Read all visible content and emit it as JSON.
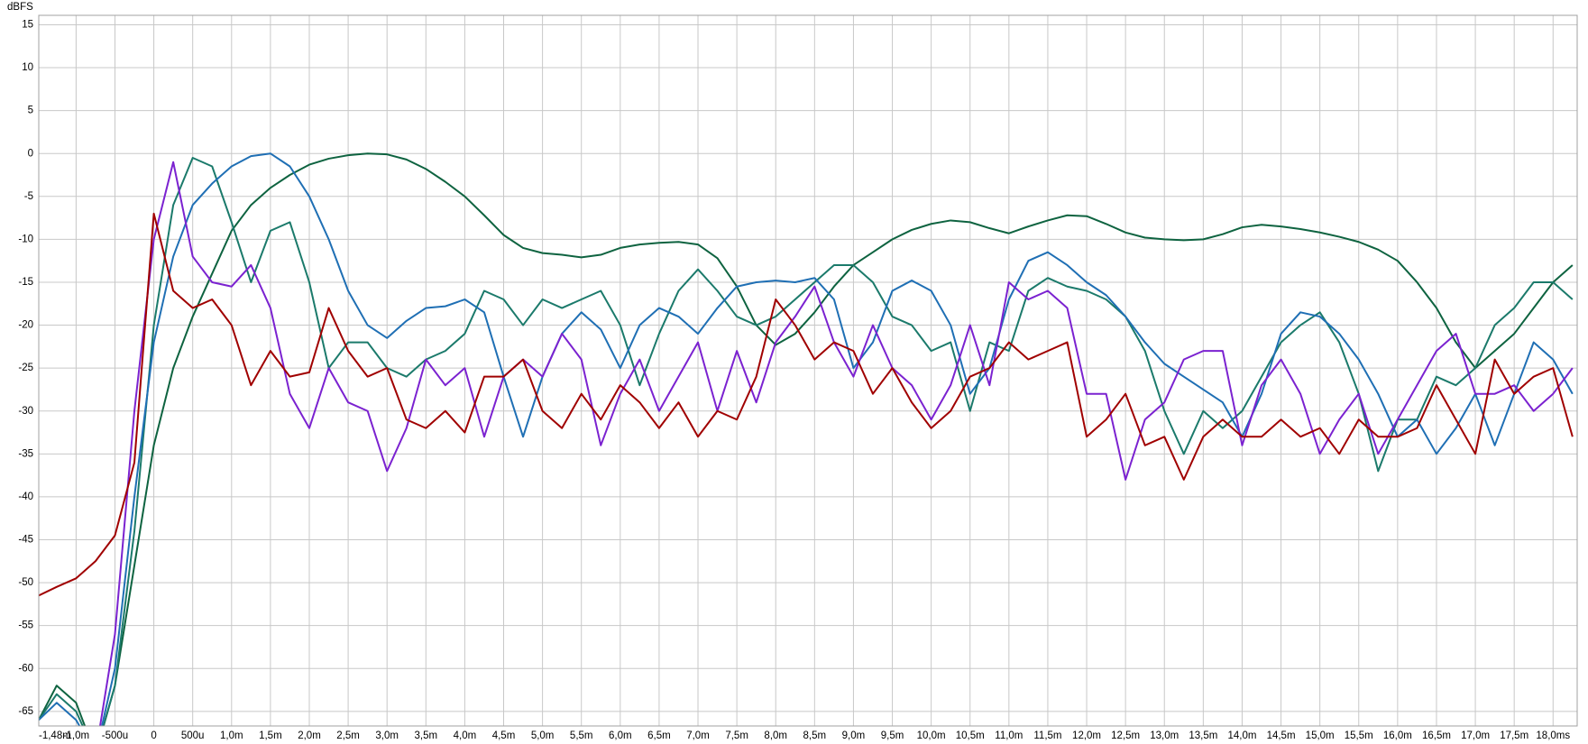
{
  "chart_data": {
    "type": "line",
    "ylabel": "dBFS",
    "xlim": [
      -1.48,
      18.31
    ],
    "ylim": [
      -66.7,
      16.1
    ],
    "grid": true,
    "xticks": [
      {
        "value": -1.48,
        "label": "-1,48m"
      },
      {
        "value": -1.0,
        "label": "-1,0m"
      },
      {
        "value": -0.5,
        "label": "-500u"
      },
      0,
      {
        "value": 0.5,
        "label": "500u"
      },
      {
        "value": 1.0,
        "label": "1,0m"
      },
      {
        "value": 1.5,
        "label": "1,5m"
      },
      {
        "value": 2.0,
        "label": "2,0m"
      },
      {
        "value": 2.5,
        "label": "2,5m"
      },
      {
        "value": 3.0,
        "label": "3,0m"
      },
      {
        "value": 3.5,
        "label": "3,5m"
      },
      {
        "value": 4.0,
        "label": "4,0m"
      },
      {
        "value": 4.5,
        "label": "4,5m"
      },
      {
        "value": 5.0,
        "label": "5,0m"
      },
      {
        "value": 5.5,
        "label": "5,5m"
      },
      {
        "value": 6.0,
        "label": "6,0m"
      },
      {
        "value": 6.5,
        "label": "6,5m"
      },
      {
        "value": 7.0,
        "label": "7,0m"
      },
      {
        "value": 7.5,
        "label": "7,5m"
      },
      {
        "value": 8.0,
        "label": "8,0m"
      },
      {
        "value": 8.5,
        "label": "8,5m"
      },
      {
        "value": 9.0,
        "label": "9,0m"
      },
      {
        "value": 9.5,
        "label": "9,5m"
      },
      {
        "value": 10.0,
        "label": "10,0m"
      },
      {
        "value": 10.5,
        "label": "10,5m"
      },
      {
        "value": 11.0,
        "label": "11,0m"
      },
      {
        "value": 11.5,
        "label": "11,5m"
      },
      {
        "value": 12.0,
        "label": "12,0m"
      },
      {
        "value": 12.5,
        "label": "12,5m"
      },
      {
        "value": 13.0,
        "label": "13,0m"
      },
      {
        "value": 13.5,
        "label": "13,5m"
      },
      {
        "value": 14.0,
        "label": "14,0m"
      },
      {
        "value": 14.5,
        "label": "14,5m"
      },
      {
        "value": 15.0,
        "label": "15,0m"
      },
      {
        "value": 15.5,
        "label": "15,5m"
      },
      {
        "value": 16.0,
        "label": "16,0m"
      },
      {
        "value": 16.5,
        "label": "16,5m"
      },
      {
        "value": 17.0,
        "label": "17,0m"
      },
      {
        "value": 17.5,
        "label": "17,5m"
      },
      {
        "value": 18.0,
        "label": "18,0ms"
      }
    ],
    "yticks": [
      15,
      10,
      5,
      0,
      -5,
      -10,
      -15,
      -20,
      -25,
      -30,
      -35,
      -40,
      -45,
      -50,
      -55,
      -60,
      -65
    ],
    "x": [
      -1.48,
      -1.25,
      -1,
      -0.75,
      -0.5,
      -0.25,
      0,
      0.25,
      0.5,
      0.75,
      1,
      1.25,
      1.5,
      1.75,
      2,
      2.25,
      2.5,
      2.75,
      3,
      3.25,
      3.5,
      3.75,
      4,
      4.25,
      4.5,
      4.75,
      5,
      5.25,
      5.5,
      5.75,
      6,
      6.25,
      6.5,
      6.75,
      7,
      7.25,
      7.5,
      7.75,
      8,
      8.25,
      8.5,
      8.75,
      9,
      9.25,
      9.5,
      9.75,
      10,
      10.25,
      10.5,
      10.75,
      11,
      11.25,
      11.5,
      11.75,
      12,
      12.25,
      12.5,
      12.75,
      13,
      13.25,
      13.5,
      13.75,
      14,
      14.25,
      14.5,
      14.75,
      15,
      15.25,
      15.5,
      15.75,
      16,
      16.25,
      16.5,
      16.75,
      17,
      17.25,
      17.5,
      17.75,
      18,
      18.25
    ],
    "series": [
      {
        "color": "#0e6340",
        "values": [
          -66,
          -62,
          -64,
          -70,
          -62,
          -48,
          -34,
          -25,
          -19,
          -14,
          -9,
          -6,
          -4,
          -2.5,
          -1.3,
          -0.6,
          -0.2,
          0,
          -0.1,
          -0.7,
          -1.8,
          -3.3,
          -5,
          -7.2,
          -9.5,
          -11,
          -11.6,
          -11.8,
          -12.1,
          -11.8,
          -11,
          -10.6,
          -10.4,
          -10.3,
          -10.6,
          -12.2,
          -15.5,
          -20,
          -22.3,
          -21,
          -18.5,
          -15.5,
          -13,
          -11.5,
          -10,
          -8.9,
          -8.2,
          -7.8,
          -8,
          -8.7,
          -9.3,
          -8.5,
          -7.8,
          -7.2,
          -7.3,
          -8.2,
          -9.2,
          -9.8,
          -10,
          -10.1,
          -10,
          -9.4,
          -8.6,
          -8.3,
          -8.5,
          -8.8,
          -9.2,
          -9.7,
          -10.3,
          -11.2,
          -12.5,
          -15,
          -18,
          -22,
          -25,
          -23,
          -21,
          -18,
          -15,
          -13
        ]
      },
      {
        "color": "#1b7a6b",
        "values": [
          -66,
          -63,
          -65,
          -70,
          -62,
          -44,
          -20,
          -6,
          -0.5,
          -1.5,
          -8,
          -15,
          -9,
          -8,
          -15,
          -25,
          -22,
          -22,
          -25,
          -26,
          -24,
          -23,
          -21,
          -16,
          -17,
          -20,
          -17,
          -18,
          -17,
          -16,
          -20,
          -27,
          -21,
          -16,
          -13.5,
          -16,
          -19,
          -20,
          -19,
          -17,
          -15,
          -13,
          -13,
          -15,
          -19,
          -20,
          -23,
          -22,
          -30,
          -22,
          -23,
          -16,
          -14.5,
          -15.5,
          -16,
          -17,
          -19,
          -23,
          -30,
          -35,
          -30,
          -32,
          -30,
          -26,
          -22,
          -20,
          -18.5,
          -22,
          -28,
          -37,
          -31,
          -31,
          -26,
          -27,
          -25,
          -20,
          -18,
          -15,
          -15,
          -17
        ]
      },
      {
        "color": "#1f6fb4",
        "values": [
          -66,
          -64,
          -66,
          -70,
          -60,
          -40,
          -22,
          -12,
          -6,
          -3.5,
          -1.5,
          -0.3,
          0,
          -1.5,
          -5,
          -10,
          -16,
          -20,
          -21.5,
          -19.5,
          -18,
          -17.8,
          -17,
          -18.5,
          -26,
          -33,
          -26,
          -21,
          -18.5,
          -20.5,
          -25,
          -20,
          -18,
          -19,
          -21,
          -18,
          -15.5,
          -15,
          -14.8,
          -15,
          -14.5,
          -17,
          -25,
          -22,
          -16,
          -14.8,
          -16,
          -20,
          -28,
          -25,
          -17,
          -12.5,
          -11.5,
          -13,
          -15,
          -16.5,
          -19,
          -22,
          -24.5,
          -26,
          -27.5,
          -29,
          -33,
          -28,
          -21,
          -18.5,
          -19,
          -21,
          -24,
          -28,
          -33,
          -31,
          -35,
          -32,
          -28,
          -34,
          -28,
          -22,
          -24,
          -28
        ]
      },
      {
        "color": "#7b22d0",
        "values": [
          -70,
          -70,
          -70,
          -70,
          -56,
          -30,
          -10,
          -1,
          -12,
          -15,
          -15.5,
          -13,
          -18,
          -28,
          -32,
          -25,
          -29,
          -30,
          -37,
          -32,
          -24,
          -27,
          -25,
          -33,
          -26,
          -24,
          -26,
          -21,
          -24,
          -34,
          -28,
          -24,
          -30,
          -26,
          -22,
          -30,
          -23,
          -29,
          -22,
          -19,
          -15.5,
          -22,
          -26,
          -20,
          -25,
          -27,
          -31,
          -27,
          -20,
          -27,
          -15,
          -17,
          -16,
          -18,
          -28,
          -28,
          -38,
          -31,
          -29,
          -24,
          -23,
          -23,
          -34,
          -27,
          -24,
          -28,
          -35,
          -31,
          -28,
          -35,
          -31,
          -27,
          -23,
          -21,
          -28,
          -28,
          -27,
          -30,
          -28,
          -25
        ]
      },
      {
        "color": "#a00000",
        "values": [
          -51.5,
          -50.5,
          -49.5,
          -47.5,
          -44.5,
          -36,
          -7,
          -16,
          -18,
          -17,
          -20,
          -27,
          -23,
          -26,
          -25.5,
          -18,
          -23,
          -26,
          -25,
          -31,
          -32,
          -30,
          -32.5,
          -26,
          -26,
          -24,
          -30,
          -32,
          -28,
          -31,
          -27,
          -29,
          -32,
          -29,
          -33,
          -30,
          -31,
          -26,
          -17,
          -20,
          -24,
          -22,
          -23,
          -28,
          -25,
          -29,
          -32,
          -30,
          -26,
          -25,
          -22,
          -24,
          -23,
          -22,
          -33,
          -31,
          -28,
          -34,
          -33,
          -38,
          -33,
          -31,
          -33,
          -33,
          -31,
          -33,
          -32,
          -35,
          -31,
          -33,
          -33,
          -32,
          -27,
          -31,
          -35,
          -24,
          -28,
          -26,
          -25,
          -33
        ]
      }
    ]
  }
}
